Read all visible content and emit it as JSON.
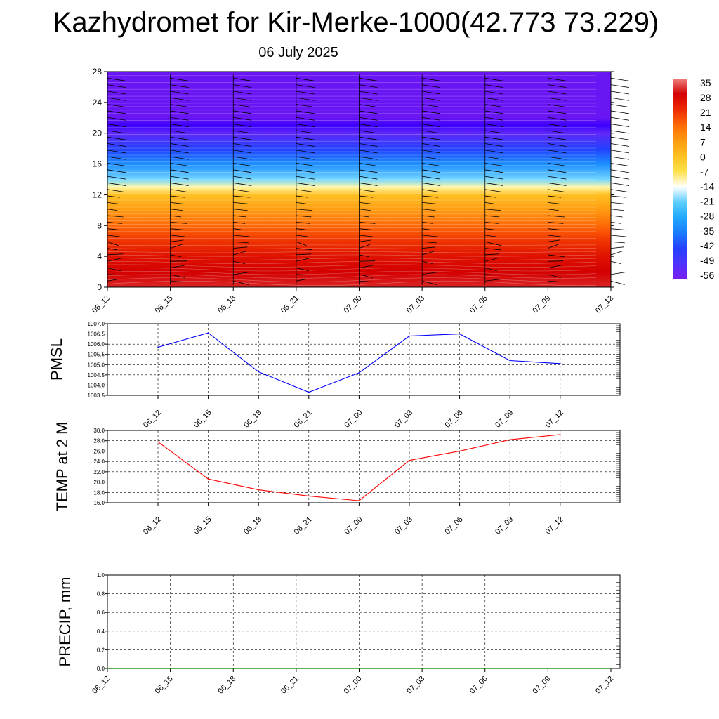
{
  "title": "Kazhydromet for Kir-Merke-1000(42.773 73.229)",
  "subtitle": "06 July 2025",
  "colors": {
    "pmsl_line": "#0000ff",
    "temp_line": "#ff0000",
    "precip_line": "#008000",
    "grid": "#000000"
  },
  "chart_data": [
    {
      "type": "heatmap",
      "variable": "temperature",
      "x_ticks": [
        "06_12",
        "06_15",
        "06_18",
        "06_21",
        "07_00",
        "07_03",
        "07_06",
        "07_09",
        "07_12"
      ],
      "y_ticks": [
        0,
        4,
        8,
        12,
        16,
        20,
        24,
        28
      ],
      "ylim": [
        0,
        28
      ],
      "profile": [
        [
          0,
          30
        ],
        [
          2,
          28
        ],
        [
          4,
          25
        ],
        [
          6,
          20
        ],
        [
          8,
          14
        ],
        [
          10,
          7
        ],
        [
          12,
          0
        ],
        [
          13,
          -10
        ],
        [
          14,
          -20
        ],
        [
          16,
          -32
        ],
        [
          18,
          -42
        ],
        [
          20,
          -52
        ],
        [
          21,
          -60
        ],
        [
          22,
          -57
        ],
        [
          28,
          -57
        ]
      ],
      "colorbar": {
        "labels": [
          "35",
          "28",
          "21",
          "14",
          "7",
          "0",
          "-7",
          "-14",
          "-21",
          "-28",
          "-35",
          "-42",
          "-49",
          "-56"
        ],
        "levels": [
          35,
          28,
          21,
          14,
          7,
          0,
          -7,
          -14,
          -21,
          -28,
          -35,
          -42,
          -49,
          -56
        ]
      },
      "wind_barbs": true
    },
    {
      "type": "line",
      "ylabel": "PMSL",
      "categories": [
        "06_12",
        "06_15",
        "06_18",
        "06_21",
        "07_00",
        "07_03",
        "07_06",
        "07_09",
        "07_12"
      ],
      "values": [
        1005.85,
        1006.55,
        1004.65,
        1003.65,
        1004.6,
        1006.4,
        1006.5,
        1005.2,
        1005.05
      ],
      "ylim": [
        1003.5,
        1007.0
      ],
      "y_ticks": [
        "1003.5",
        "1004.0",
        "1004.5",
        "1005.0",
        "1005.5",
        "1006.0",
        "1006.5",
        "1007.0"
      ],
      "grid": true
    },
    {
      "type": "line",
      "ylabel": "TEMP at 2 M",
      "categories": [
        "06_12",
        "06_15",
        "06_18",
        "06_21",
        "07_00",
        "07_03",
        "07_06",
        "07_09",
        "07_12"
      ],
      "values": [
        27.8,
        20.6,
        18.5,
        17.3,
        16.4,
        24.2,
        26.0,
        28.2,
        29.2
      ],
      "ylim": [
        16.0,
        30.0
      ],
      "y_ticks": [
        "16.0",
        "18.0",
        "20.0",
        "22.0",
        "24.0",
        "26.0",
        "28.0",
        "30.0"
      ],
      "grid": true
    },
    {
      "type": "line",
      "ylabel": "PRECIP, mm",
      "categories": [
        "06_12",
        "06_15",
        "06_18",
        "06_21",
        "07_00",
        "07_03",
        "07_06",
        "07_09",
        "07_12"
      ],
      "values": [
        0,
        0,
        0,
        0,
        0,
        0,
        0,
        0,
        0
      ],
      "ylim": [
        0.0,
        1.0
      ],
      "y_ticks": [
        "0.0",
        "0.2",
        "0.4",
        "0.6",
        "0.8",
        "1.0"
      ],
      "grid": true
    }
  ]
}
